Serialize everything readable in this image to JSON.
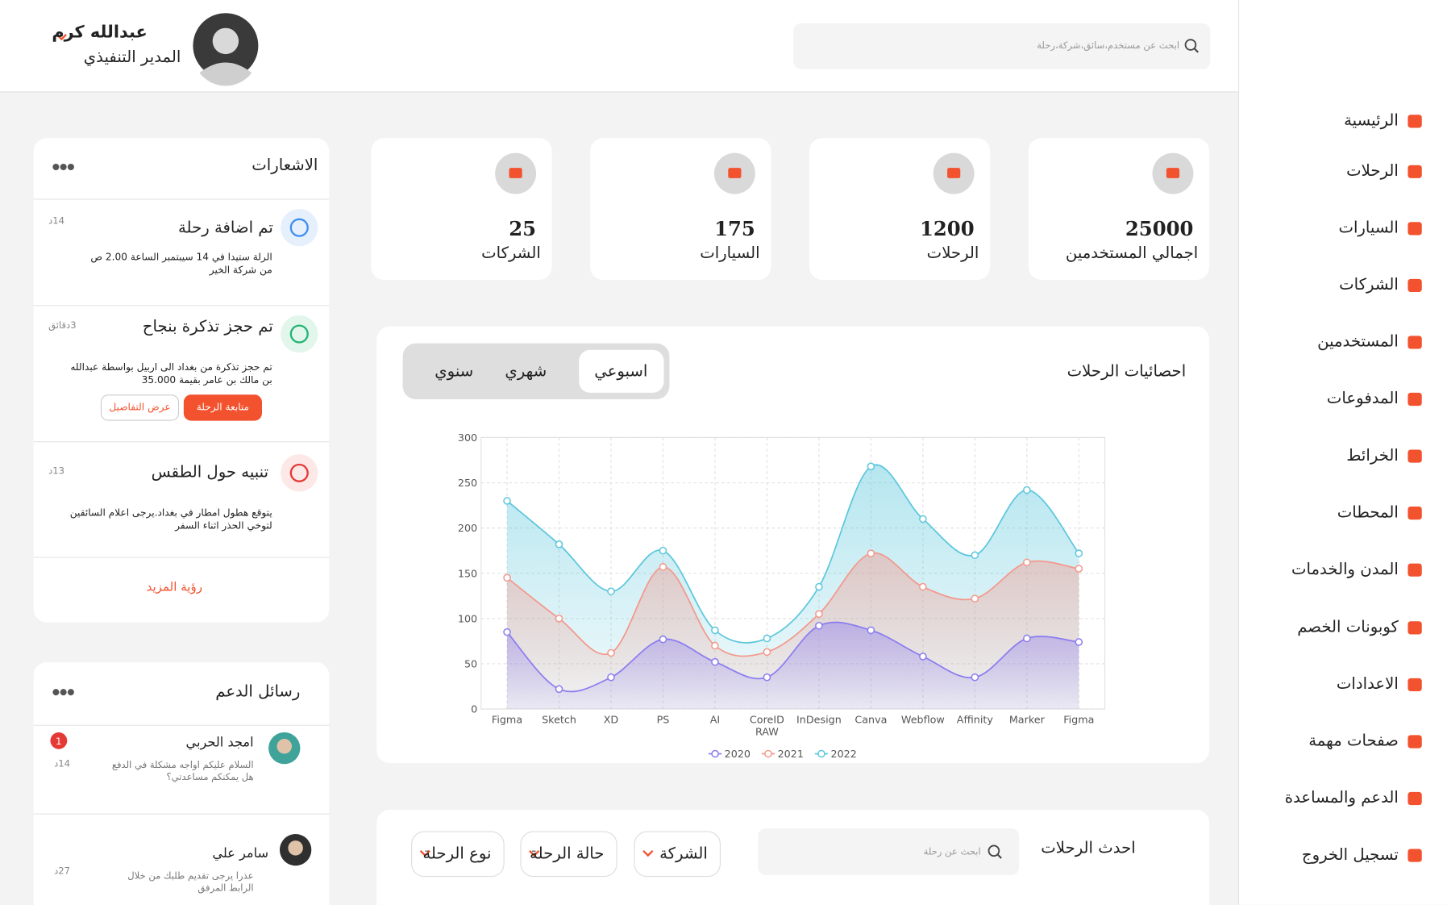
{
  "sidebar": {
    "items": [
      "الرئيسية",
      "الرحلات",
      "السيارات",
      "الشركات",
      "المستخدمين",
      "المدفوعات",
      "الخرائط",
      "المحطات",
      "المدن والخدمات",
      "كوبونات الخصم",
      "الاعدادات",
      "صفحات مهمة",
      "الدعم والمساعدة",
      "تسجيل الخروج"
    ]
  },
  "header": {
    "search_placeholder": "ابحث عن مستخدم،سائق،شركة،رحلة",
    "user_name": "عبدالله كرم",
    "user_role": "المدير التنفيذي"
  },
  "stats": [
    {
      "value": 25000,
      "label": "اجمالي المستخدمين"
    },
    {
      "value": 1200,
      "label": "الرحلات"
    },
    {
      "value": 175,
      "label": "السيارات"
    },
    {
      "value": 25,
      "label": "الشركات"
    }
  ],
  "chart_card": {
    "title": "احصائيات الرحلات",
    "tabs": [
      "اسبوعي",
      "شهري",
      "سنوي"
    ]
  },
  "chart_data": {
    "type": "area",
    "categories": [
      "Figma",
      "Sketch",
      "XD",
      "PS",
      "AI",
      "CoreID RAW",
      "InDesign",
      "Canva",
      "Webflow",
      "Affinity",
      "Marker",
      "Figma"
    ],
    "series": [
      {
        "name": "2020",
        "color": "#8b7cf0",
        "values": [
          85,
          22,
          35,
          77,
          52,
          35,
          92,
          87,
          58,
          35,
          78,
          74
        ]
      },
      {
        "name": "2021",
        "color": "#f4988c",
        "values": [
          145,
          100,
          62,
          157,
          70,
          63,
          105,
          172,
          135,
          122,
          162,
          155
        ]
      },
      {
        "name": "2022",
        "color": "#5cc7dc",
        "values": [
          230,
          182,
          130,
          175,
          87,
          78,
          135,
          268,
          210,
          170,
          242,
          172
        ]
      }
    ],
    "ylim": [
      0,
      300
    ],
    "yticks": [
      0,
      50,
      100,
      150,
      200,
      250,
      300
    ],
    "grid": true,
    "legend": "bottom"
  },
  "trips": {
    "title": "احدث الرحلات",
    "search_placeholder": "ابحث عن رحلة",
    "filters": [
      "الشركة",
      "حالة الرحلة",
      "نوع الرحلة"
    ]
  },
  "notifications": {
    "title": "الاشعارات",
    "items": [
      {
        "title": "تم اضافة رحلة",
        "time": "14د",
        "text": [
          "الرلة ستيدا في 14 سيبتمبر الساعة 2.00 ص",
          "من شركة الخير"
        ]
      },
      {
        "title": "تم حجز تذكرة بنجاح",
        "time": "3دقائق",
        "text": [
          "تم حجز تذكرة من بغداد الى اربيل بواسطة عبدالله",
          "بن مالك بن عامر بقيمة 35.000"
        ],
        "actions": [
          "متابعة الرحلة",
          "عرض التفاصيل"
        ]
      },
      {
        "title": "تنبيه حول الطقس",
        "time": "13د",
        "text": [
          "يتوقع هطول امطار في بغداد.يرجى اعلام السائقين",
          "لتوخي الحذر اثناء السفر"
        ]
      }
    ],
    "more": "رؤية المزيد"
  },
  "support": {
    "title": "رسائل الدعم",
    "messages": [
      {
        "name": "امجد الحربي",
        "time": "14د",
        "unread": 1,
        "text": [
          "السلام عليكم اواجه مشكلة في الدفع",
          "هل يمكنكم مساعدتي؟"
        ]
      },
      {
        "name": "سامر علي",
        "time": "27د",
        "text": [
          "عذرا يرجى تقديم طلبك من خلال",
          "الرابط المرفق"
        ]
      }
    ]
  }
}
